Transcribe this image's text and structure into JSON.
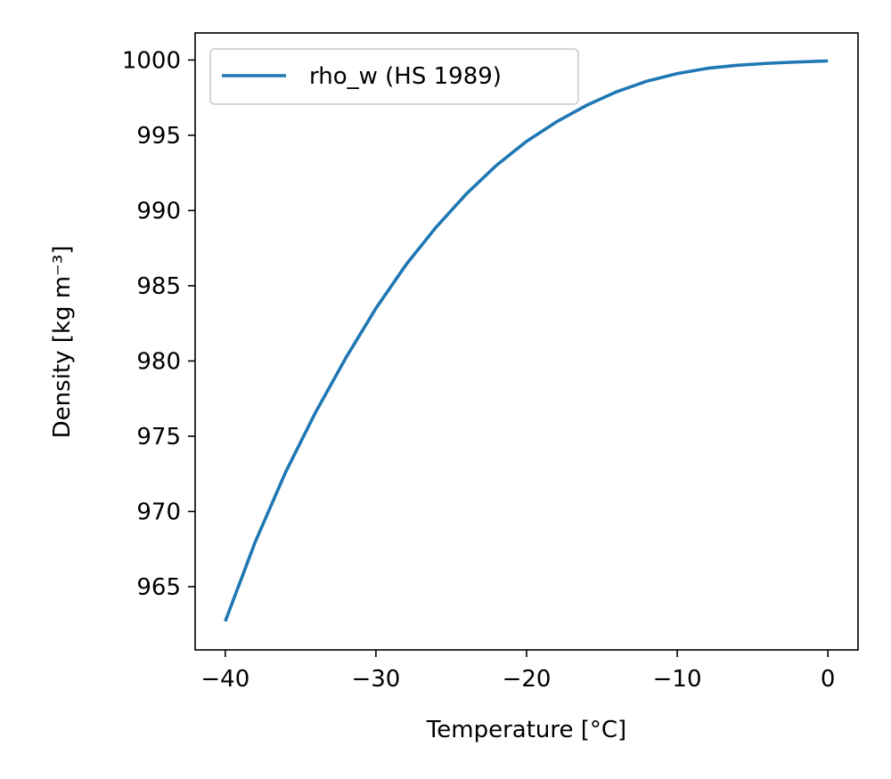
{
  "chart_data": {
    "type": "line",
    "title": "",
    "xlabel": "Temperature [°C]",
    "ylabel": "Density [kg m⁻³]",
    "xlim": [
      -42,
      2
    ],
    "ylim": [
      960.8,
      1001.8
    ],
    "xticks": [
      -40,
      -30,
      -20,
      -10,
      0
    ],
    "xtick_labels": [
      "−40",
      "−30",
      "−20",
      "−10",
      "0"
    ],
    "yticks": [
      965,
      970,
      975,
      980,
      985,
      990,
      995,
      1000
    ],
    "ytick_labels": [
      "965",
      "970",
      "975",
      "980",
      "985",
      "990",
      "995",
      "1000"
    ],
    "grid": false,
    "legend_position": "upper-left",
    "series": [
      {
        "name": "rho_w (HS 1989)",
        "color": "#1f77b4",
        "x": [
          -40,
          -38,
          -36,
          -34,
          -32,
          -30,
          -28,
          -26,
          -24,
          -22,
          -20,
          -18,
          -16,
          -14,
          -12,
          -10,
          -8,
          -6,
          -4,
          -2,
          0
        ],
        "y": [
          962.7,
          968.0,
          972.6,
          976.6,
          980.2,
          983.5,
          986.4,
          988.9,
          991.1,
          993.0,
          994.6,
          995.9,
          997.0,
          997.9,
          998.6,
          999.1,
          999.45,
          999.65,
          999.78,
          999.87,
          999.94
        ]
      }
    ]
  }
}
